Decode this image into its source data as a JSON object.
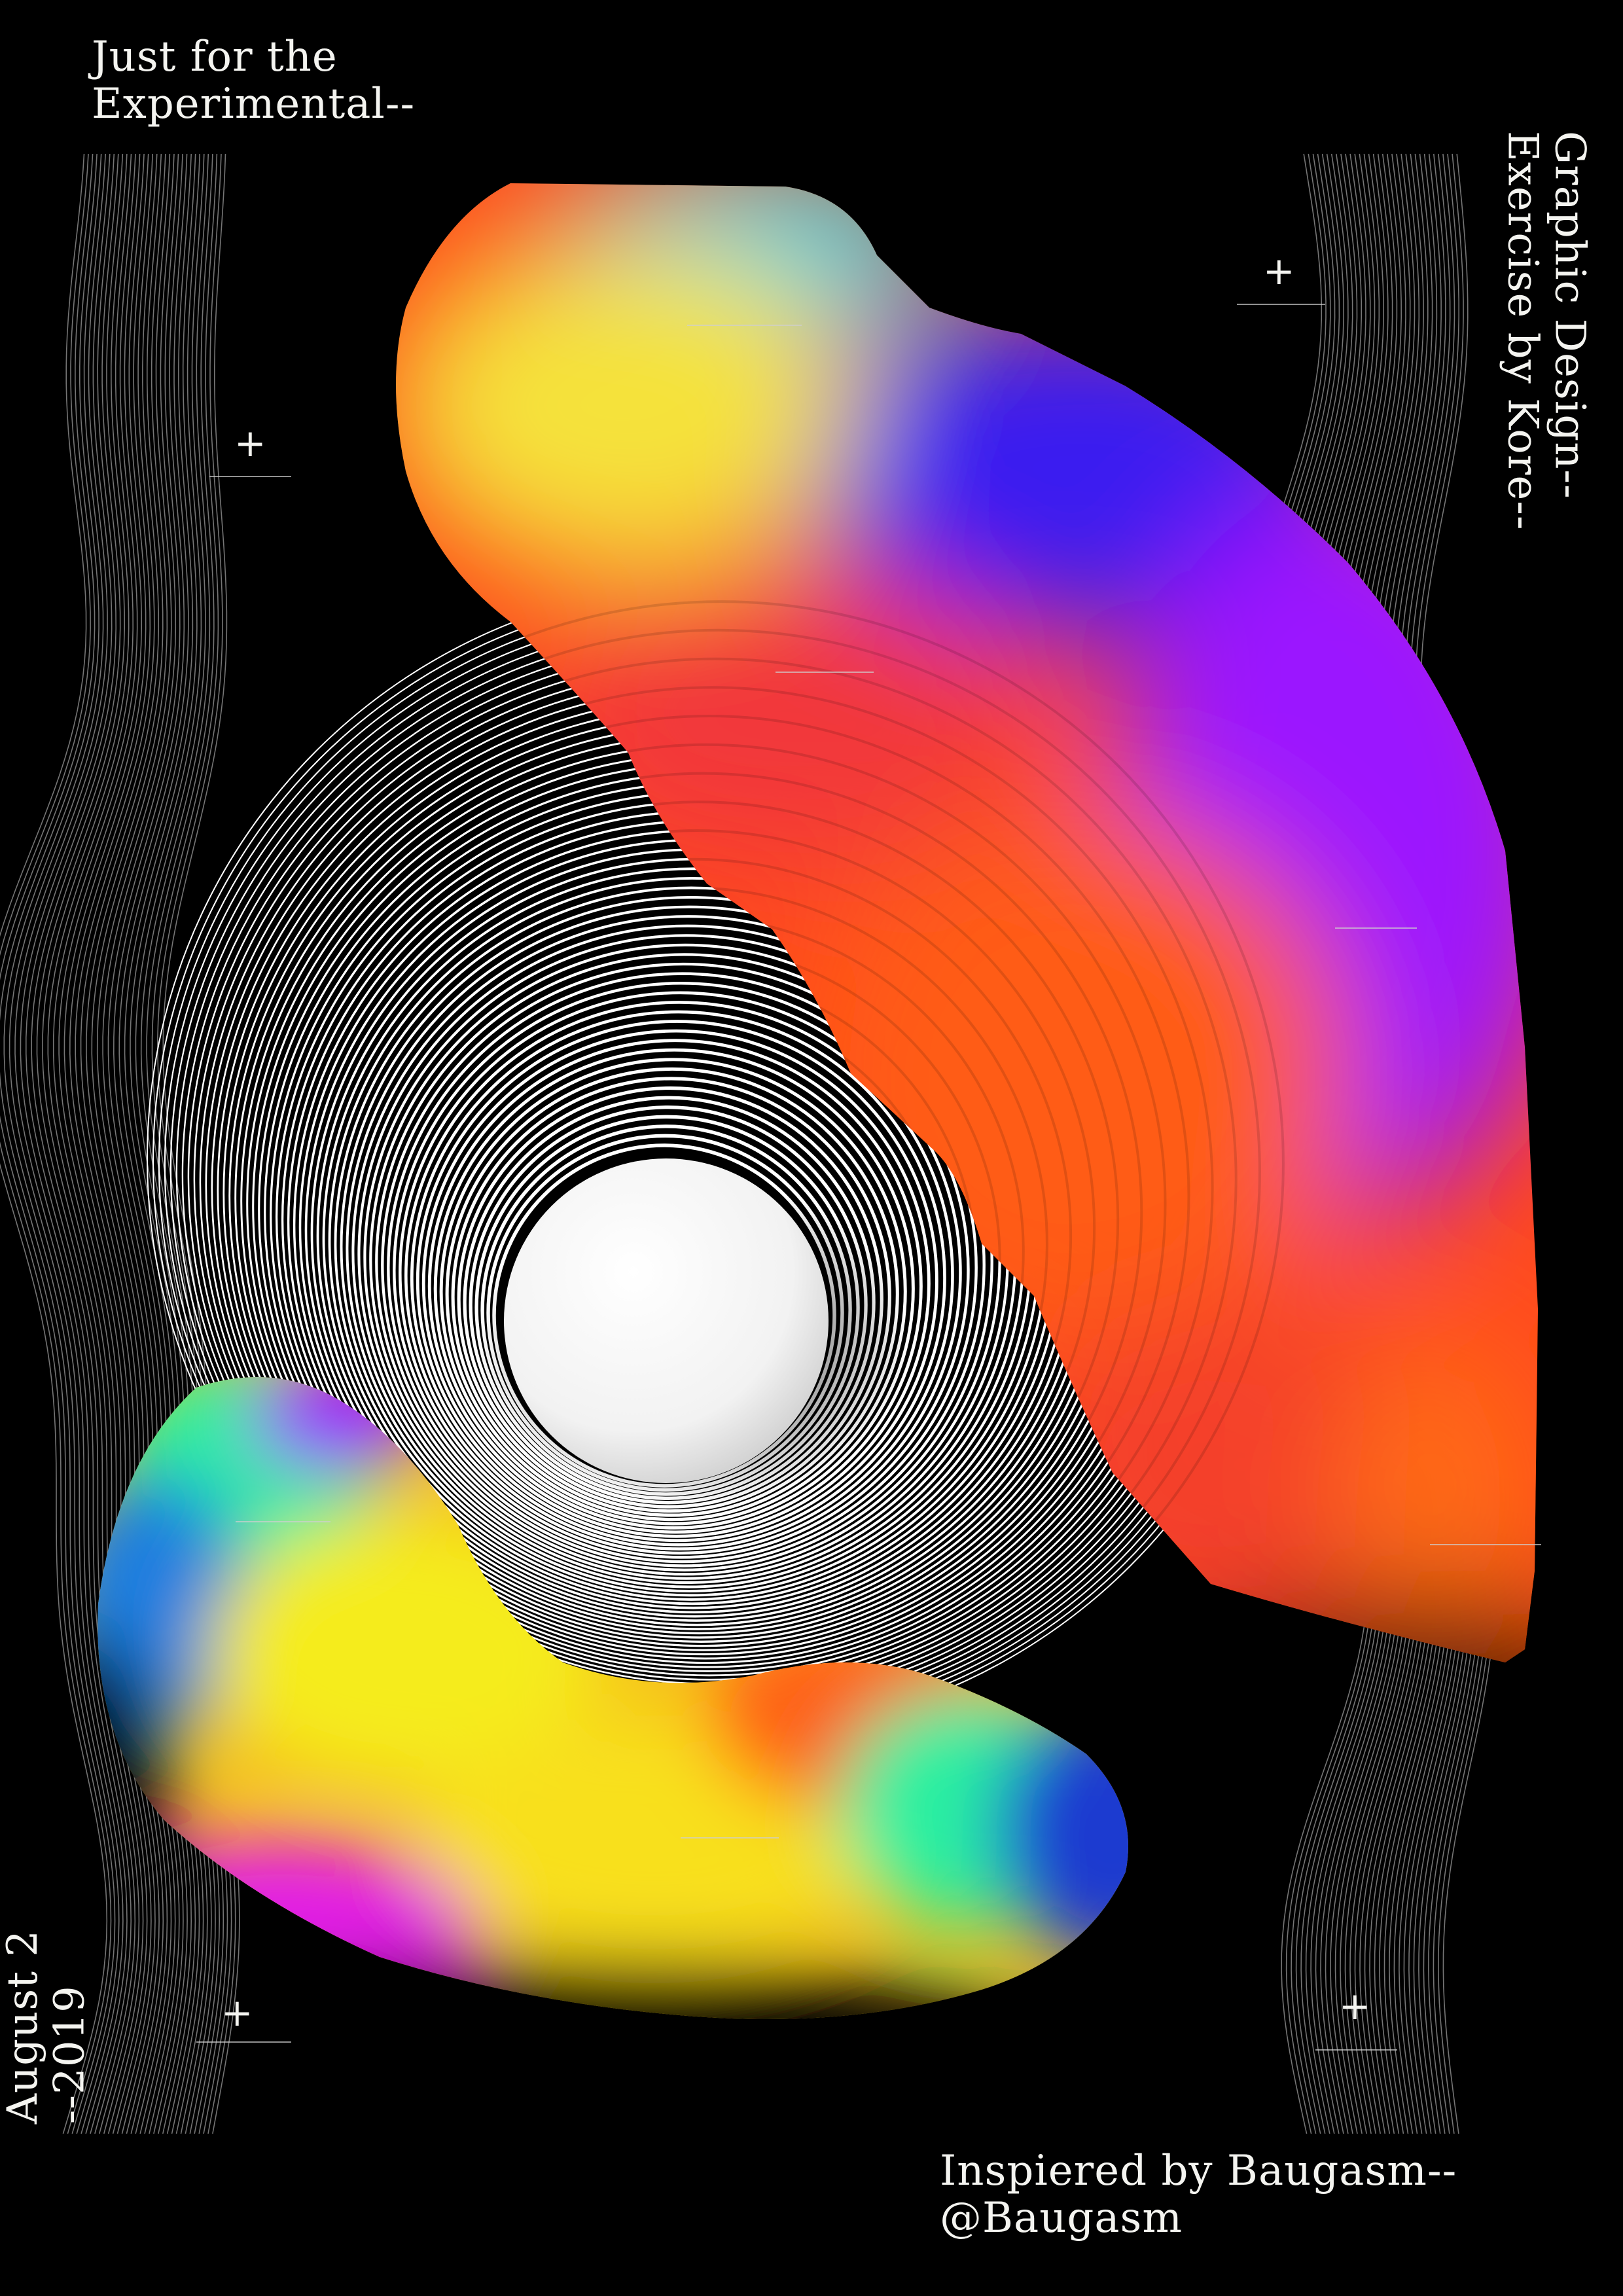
{
  "colors": {
    "background": "#000000",
    "text": "#f4f4f0",
    "wave_lines": "#8a8a8a",
    "rings": "#ffffff",
    "blob_yellow": "#f5e23a",
    "blob_cyan": "#2fd2e6",
    "blob_blue": "#3a1cf0",
    "blob_violet": "#9b18ff",
    "blob_red": "#f2383a",
    "blob_orange": "#ff5b12",
    "blob_magenta": "#e21be6",
    "blob_green": "#2cf0a0"
  },
  "text": {
    "top_left": [
      "Just for the",
      "Experimental--"
    ],
    "right_vertical": [
      "Graphic Design--",
      "Exercise by Kore--"
    ],
    "left_vertical": [
      "August 2",
      "--2019"
    ],
    "bottom_right": [
      "Inspiered by Baugasm--",
      "@Baugasm"
    ]
  },
  "markers": [
    "+",
    "+",
    "+",
    "+"
  ]
}
